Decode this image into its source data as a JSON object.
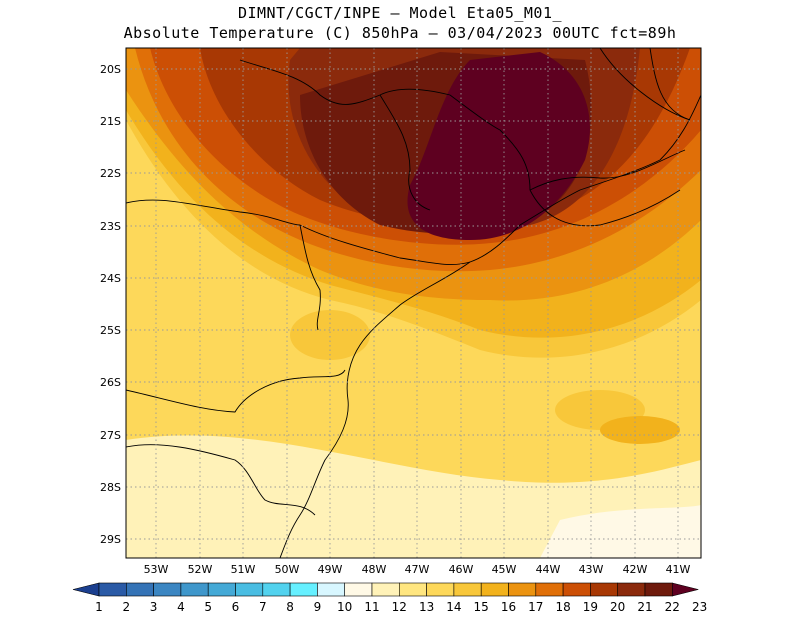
{
  "header": {
    "line1": "DIMNT/CGCT/INPE —  Model Eta05_M01_",
    "line2": "Absolute Temperature (C) 850hPa —  03/04/2023 00UTC fct=89h"
  },
  "map": {
    "lat_labels": [
      "20S",
      "21S",
      "22S",
      "23S",
      "24S",
      "25S",
      "26S",
      "27S",
      "28S",
      "29S"
    ],
    "lon_labels": [
      "53W",
      "52W",
      "51W",
      "50W",
      "49W",
      "48W",
      "47W",
      "46W",
      "45W",
      "44W",
      "43W",
      "42W",
      "41W"
    ],
    "extent": {
      "lon_min": -53.6,
      "lon_max": -40.4,
      "lat_min": -29.4,
      "lat_max": -19.7
    }
  },
  "colorbar": {
    "labels": [
      "1",
      "2",
      "3",
      "4",
      "5",
      "6",
      "7",
      "8",
      "9",
      "10",
      "11",
      "12",
      "13",
      "14",
      "15",
      "16",
      "17",
      "18",
      "19",
      "20",
      "21",
      "22",
      "23"
    ],
    "colors": [
      "#1b3f8f",
      "#2a5aa6",
      "#3473b6",
      "#3b86c2",
      "#3f97cb",
      "#44a9d6",
      "#49bde2",
      "#52d2ee",
      "#66f0ff",
      "#d8f7ff",
      "#fff9e6",
      "#fff2b8",
      "#ffe680",
      "#fdd85a",
      "#f8c73a",
      "#f2b21c",
      "#eb9310",
      "#e06f08",
      "#cc4f05",
      "#a83804",
      "#8b2a0c",
      "#6e1a0c",
      "#5e0020"
    ]
  }
}
